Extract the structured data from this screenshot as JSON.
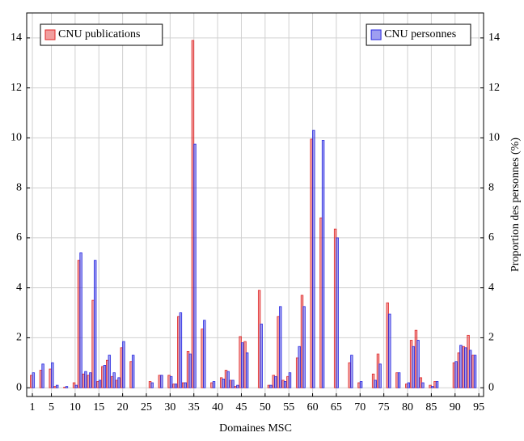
{
  "chart_data": {
    "type": "bar",
    "x_label": "Domaines MSC",
    "y2_label": "Proportion des personnes (%)",
    "x": [
      1,
      3,
      5,
      6,
      8,
      10,
      11,
      12,
      13,
      14,
      15,
      16,
      17,
      18,
      19,
      20,
      22,
      26,
      28,
      30,
      31,
      32,
      33,
      34,
      35,
      37,
      39,
      41,
      42,
      43,
      44,
      45,
      46,
      49,
      51,
      52,
      53,
      54,
      55,
      57,
      58,
      60,
      62,
      65,
      68,
      70,
      73,
      74,
      76,
      78,
      80,
      81,
      82,
      83,
      85,
      86,
      90,
      91,
      92,
      93,
      94
    ],
    "series": [
      {
        "name": "CNU publications",
        "color": "#e02828",
        "legend_loc": "upper left",
        "values": [
          0.5,
          0.7,
          0.75,
          0.05,
          0.02,
          0.2,
          5.1,
          0.55,
          0.5,
          3.5,
          0.25,
          0.85,
          1.1,
          0.45,
          0.3,
          1.6,
          1.05,
          0.25,
          0.5,
          0.5,
          0.15,
          2.85,
          0.2,
          1.45,
          13.9,
          2.35,
          0.2,
          0.4,
          0.7,
          0.3,
          0.05,
          2.05,
          1.85,
          3.9,
          0.1,
          0.5,
          2.85,
          0.3,
          0.45,
          1.2,
          3.7,
          9.95,
          6.8,
          6.35,
          1.0,
          0.2,
          0.55,
          1.35,
          3.4,
          0.6,
          0.15,
          1.9,
          2.3,
          0.4,
          0.1,
          0.25,
          1.0,
          1.4,
          1.65,
          2.1,
          1.3
        ]
      },
      {
        "name": "CNU personnes",
        "color": "#2828e0",
        "axis": "y2",
        "legend_loc": "upper right",
        "values": [
          0.6,
          0.95,
          1.0,
          0.1,
          0.05,
          0.1,
          5.4,
          0.65,
          0.6,
          5.1,
          0.3,
          0.9,
          1.3,
          0.6,
          0.4,
          1.85,
          1.3,
          0.2,
          0.5,
          0.45,
          0.15,
          3.0,
          0.2,
          1.35,
          9.75,
          2.7,
          0.25,
          0.35,
          0.65,
          0.3,
          0.1,
          1.8,
          1.4,
          2.55,
          0.1,
          0.45,
          3.25,
          0.25,
          0.6,
          1.65,
          3.25,
          10.3,
          9.9,
          6.0,
          1.3,
          0.25,
          0.3,
          0.95,
          2.95,
          0.6,
          0.2,
          1.65,
          1.9,
          0.2,
          0.05,
          0.25,
          1.05,
          1.7,
          1.6,
          1.5,
          1.3
        ]
      }
    ],
    "xlim": [
      -0.2,
      96
    ],
    "xticks": [
      1,
      5,
      10,
      15,
      20,
      25,
      30,
      35,
      40,
      45,
      50,
      55,
      60,
      65,
      70,
      75,
      80,
      85,
      90,
      95
    ],
    "ylim": [
      -0.35,
      15
    ],
    "yticks": [
      0,
      2,
      4,
      6,
      8,
      10,
      12,
      14
    ],
    "y2lim": [
      -0.35,
      15
    ],
    "y2ticks": [
      0,
      2,
      4,
      6,
      8,
      10,
      12,
      14
    ],
    "grid": true
  }
}
